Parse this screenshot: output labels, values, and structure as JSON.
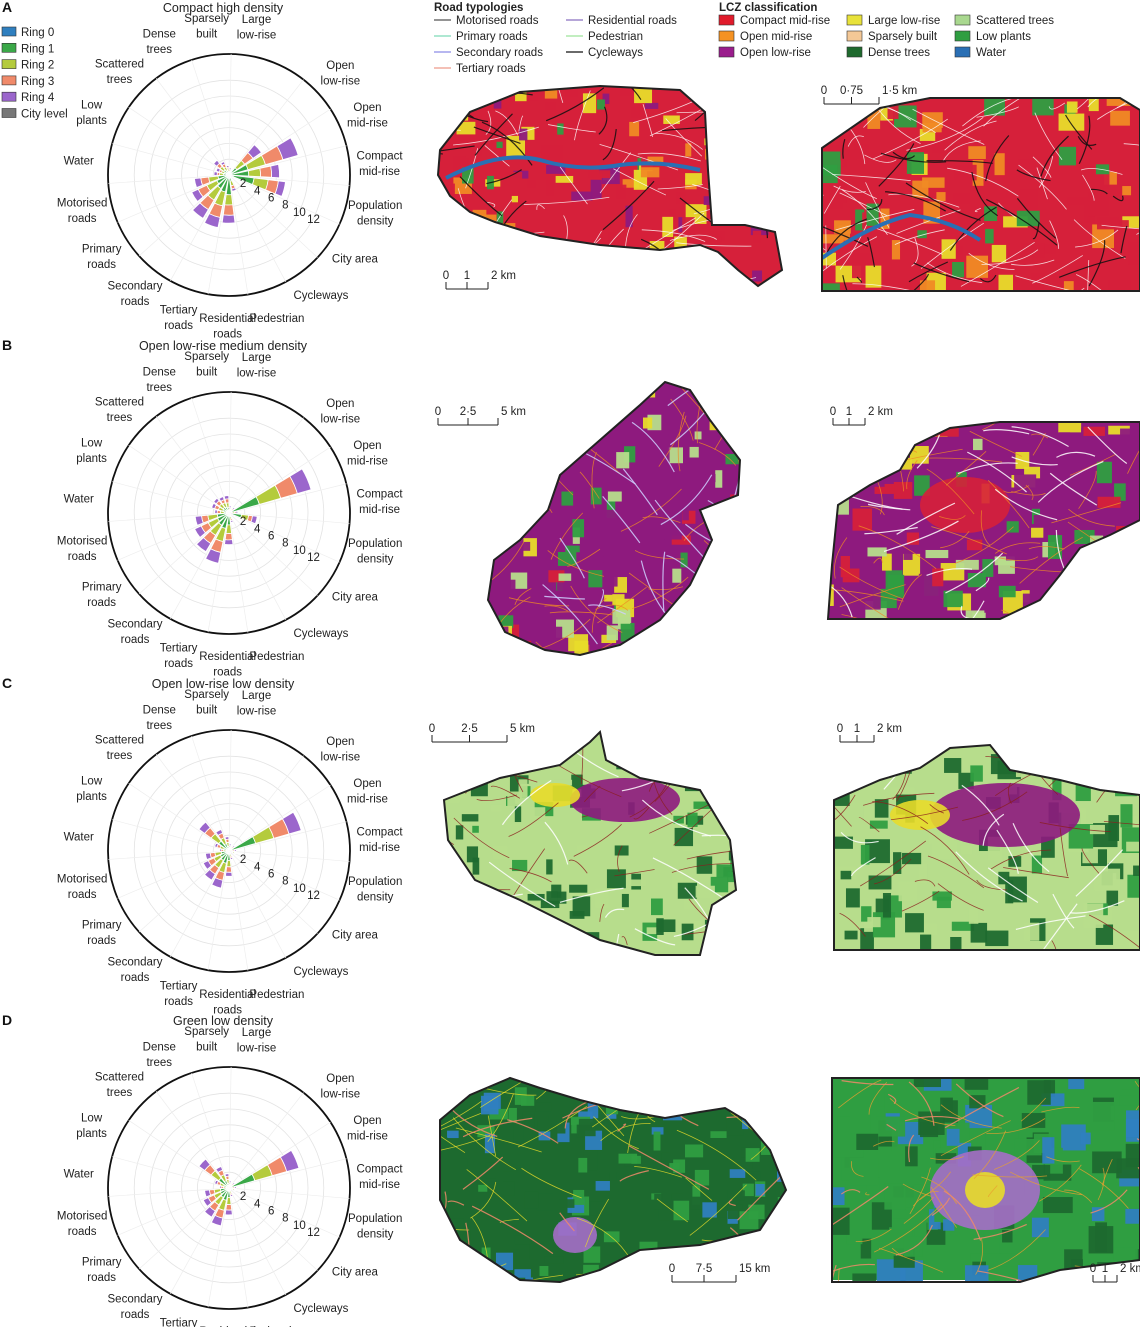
{
  "labels": {
    "ticks": [
      "2",
      "4",
      "6",
      "8",
      "10",
      "12"
    ],
    "variables": [
      [
        "Open",
        "low-rise"
      ],
      [
        "Open",
        "mid-rise"
      ],
      [
        "Compact",
        "mid-rise"
      ],
      [
        "Population",
        "density"
      ],
      [
        "City area"
      ],
      [
        "Cycleways"
      ],
      [
        "Pedestrian"
      ],
      [
        "Residential",
        "roads"
      ],
      [
        "Tertiary",
        "roads"
      ],
      [
        "Secondary",
        "roads"
      ],
      [
        "Primary",
        "roads"
      ],
      [
        "Motorised",
        "roads"
      ],
      [
        "Water"
      ],
      [
        "Low",
        "plants"
      ],
      [
        "Scattered",
        "trees"
      ],
      [
        "Dense",
        "trees"
      ],
      [
        "Sparsely",
        "built"
      ],
      [
        "Large",
        "low-rise"
      ]
    ]
  },
  "legends": {
    "rings": {
      "items": [
        {
          "label": "Ring 0",
          "color": "#2f7fbf"
        },
        {
          "label": "Ring 1",
          "color": "#3aa848"
        },
        {
          "label": "Ring 2",
          "color": "#b4cb3c"
        },
        {
          "label": "Ring 3",
          "color": "#f08a6a"
        },
        {
          "label": "Ring 4",
          "color": "#9b66cc"
        },
        {
          "label": "City level",
          "color": "#777777"
        }
      ]
    },
    "roads": {
      "title": "Road typologies",
      "items": [
        {
          "label": "Motorised roads",
          "color": "#555555"
        },
        {
          "label": "Primary roads",
          "color": "#7ed9b8"
        },
        {
          "label": "Secondary roads",
          "color": "#8c8ce6"
        },
        {
          "label": "Tertiary roads",
          "color": "#ee9a8a"
        },
        {
          "label": "Residential roads",
          "color": "#8a70c0"
        },
        {
          "label": "Pedestrian",
          "color": "#9ee39a"
        },
        {
          "label": "Cycleways",
          "color": "#111111"
        }
      ]
    },
    "lcz": {
      "title": "LCZ classification",
      "items": [
        {
          "label": "Compact mid-rise",
          "color": "#e01b2b"
        },
        {
          "label": "Open mid-rise",
          "color": "#f59222"
        },
        {
          "label": "Open low-rise",
          "color": "#9a1d8c"
        },
        {
          "label": "Large low-rise",
          "color": "#e8e23a"
        },
        {
          "label": "Sparsely built",
          "color": "#f4c896"
        },
        {
          "label": "Dense trees",
          "color": "#1f6a2e"
        },
        {
          "label": "Scattered trees",
          "color": "#a9d88f"
        },
        {
          "label": "Low plants",
          "color": "#2f9e41"
        },
        {
          "label": "Water",
          "color": "#2a6fb4"
        }
      ]
    }
  },
  "colors": {
    "compact_mid": "#d6203a",
    "open_mid": "#f08a24",
    "open_low": "#8e1a7e",
    "large_low": "#e8dc2a",
    "scattered": "#b7dd8c",
    "dense": "#1d6a2f",
    "low_plants": "#2f9e41",
    "water": "#2a6fb4",
    "road_light": "#ffffff"
  },
  "chart_data": [
    {
      "panel": "A",
      "type": "radial-stacked-bar",
      "title": "Compact high density",
      "ring_names": [
        "Ring 0",
        "Ring 1",
        "Ring 2",
        "Ring 3",
        "Ring 4"
      ],
      "variables": [
        "Open low-rise",
        "Open mid-rise",
        "Compact mid-rise",
        "Population density",
        "City area",
        "Cycleways",
        "Pedestrian",
        "Residential roads",
        "Tertiary roads",
        "Secondary roads",
        "Primary roads",
        "Motorised roads",
        "Water",
        "Low plants",
        "Scattered trees",
        "Dense trees",
        "Sparsely built",
        "Large low-rise"
      ],
      "values": [
        [
          0,
          1.2,
          1.2,
          1.3,
          1.3
        ],
        [
          0,
          2.5,
          2.3,
          2.3,
          2.0
        ],
        [
          0,
          2.5,
          1.5,
          1.4,
          1.0
        ],
        [
          0,
          3.2,
          1.8,
          1.3,
          0.9
        ],
        [
          0,
          0.3,
          0.1,
          0,
          0
        ],
        [
          0,
          0.3,
          0.2,
          0,
          0
        ],
        [
          0,
          0.8,
          0.6,
          0.4,
          0.3
        ],
        [
          0,
          2.5,
          1.3,
          1.3,
          1.0
        ],
        [
          0,
          2.2,
          1.8,
          1.5,
          1.3
        ],
        [
          0,
          2.0,
          1.7,
          1.4,
          1.3
        ],
        [
          0,
          1.7,
          1.4,
          1.2,
          0.9
        ],
        [
          0,
          1.4,
          1.2,
          1.0,
          0.8
        ],
        [
          0,
          0.7,
          0.5,
          0.3,
          0.4
        ],
        [
          0,
          0.6,
          0.4,
          0.3,
          0.4
        ],
        [
          0,
          0.8,
          0.6,
          0.5,
          0.5
        ],
        [
          0,
          0.6,
          0.5,
          0.4,
          0.3
        ],
        [
          0,
          0.5,
          0.3,
          0.2,
          0.2
        ],
        [
          0,
          0.3,
          0.2,
          0.2,
          0.2
        ]
      ],
      "city_level": [
        0.2,
        0.4,
        0.4,
        0.6,
        0.4,
        0.1,
        0.2,
        0.4,
        0.4,
        0.3,
        0.3,
        0.3,
        0.2,
        0.2,
        0.2,
        0.2,
        0.1,
        0.1
      ],
      "rlim": [
        0,
        12
      ],
      "scale_bars": [
        {
          "labels": [
            "0",
            "1",
            "2 km"
          ]
        },
        {
          "labels": [
            "0",
            "0·75",
            "1·5 km"
          ]
        }
      ]
    },
    {
      "panel": "B",
      "type": "radial-stacked-bar",
      "title": "Open low-rise medium density",
      "ring_names": [
        "Ring 0",
        "Ring 1",
        "Ring 2",
        "Ring 3",
        "Ring 4"
      ],
      "variables": [
        "Open low-rise",
        "Open mid-rise",
        "Compact mid-rise",
        "Population density",
        "City area",
        "Cycleways",
        "Pedestrian",
        "Residential roads",
        "Tertiary roads",
        "Secondary roads",
        "Primary roads",
        "Motorised roads",
        "Water",
        "Low plants",
        "Scattered trees",
        "Dense trees",
        "Sparsely built",
        "Large low-rise"
      ],
      "values": [
        [
          0,
          0.3,
          0.2,
          0.2,
          0.2
        ],
        [
          0,
          4.0,
          2.8,
          2.2,
          1.8
        ],
        [
          0,
          0.4,
          0.3,
          0.2,
          0.2
        ],
        [
          0,
          1.6,
          0.9,
          0.5,
          0.6
        ],
        [
          0,
          0.2,
          0,
          0,
          0
        ],
        [
          0,
          0.3,
          0.2,
          0,
          0
        ],
        [
          0,
          0.5,
          0.3,
          0.2,
          0.2
        ],
        [
          0,
          1.5,
          1.1,
          0.8,
          0.6
        ],
        [
          0,
          2.0,
          1.7,
          1.4,
          1.4
        ],
        [
          0,
          1.8,
          1.5,
          1.2,
          1.2
        ],
        [
          0,
          1.6,
          1.3,
          1.0,
          0.9
        ],
        [
          0,
          1.5,
          1.2,
          0.8,
          0.8
        ],
        [
          0,
          0.6,
          0.5,
          0.4,
          0.3
        ],
        [
          0,
          0.8,
          0.6,
          0.5,
          0.4
        ],
        [
          0,
          0.9,
          0.6,
          0.5,
          0.4
        ],
        [
          0,
          0.8,
          0.6,
          0.4,
          0.4
        ],
        [
          0,
          0.7,
          0.6,
          0.5,
          0.4
        ],
        [
          0,
          0.3,
          0.2,
          0.2,
          0.2
        ]
      ],
      "city_level": [
        0.1,
        0.2,
        0.2,
        0.5,
        0.3,
        0.1,
        0.1,
        0.3,
        0.3,
        0.3,
        0.3,
        0.2,
        0.1,
        0.2,
        0.2,
        0.2,
        0.2,
        0.1
      ],
      "rlim": [
        0,
        12
      ],
      "scale_bars": [
        {
          "labels": [
            "0",
            "2·5",
            "5 km"
          ]
        },
        {
          "labels": [
            "0",
            "1",
            "2 km"
          ]
        }
      ]
    },
    {
      "panel": "C",
      "type": "radial-stacked-bar",
      "title": "Open low-rise low density",
      "ring_names": [
        "Ring 0",
        "Ring 1",
        "Ring 2",
        "Ring 3",
        "Ring 4"
      ],
      "variables": [
        "Open low-rise",
        "Open mid-rise",
        "Compact mid-rise",
        "Population density",
        "City area",
        "Cycleways",
        "Pedestrian",
        "Residential roads",
        "Tertiary roads",
        "Secondary roads",
        "Primary roads",
        "Motorised roads",
        "Water",
        "Low plants",
        "Scattered trees",
        "Dense trees",
        "Sparsely built",
        "Large low-rise"
      ],
      "values": [
        [
          0,
          0.3,
          0.2,
          0.2,
          0.2
        ],
        [
          0,
          3.5,
          2.4,
          2.0,
          1.6
        ],
        [
          0,
          0.3,
          0.2,
          0.2,
          0.2
        ],
        [
          0,
          0.5,
          0.2,
          0.1,
          0.1
        ],
        [
          0,
          0.1,
          0,
          0,
          0
        ],
        [
          0,
          0.2,
          0.1,
          0,
          0
        ],
        [
          0,
          0.4,
          0.3,
          0.2,
          0.2
        ],
        [
          0,
          1.2,
          0.8,
          0.7,
          0.5
        ],
        [
          0,
          1.6,
          1.2,
          1.0,
          1.0
        ],
        [
          0,
          1.4,
          1.1,
          0.9,
          0.9
        ],
        [
          0,
          1.2,
          0.9,
          0.8,
          0.7
        ],
        [
          0,
          1.0,
          0.8,
          0.6,
          0.6
        ],
        [
          0,
          0.4,
          0.3,
          0.3,
          0.2
        ],
        [
          0,
          0.7,
          0.5,
          0.4,
          0.3
        ],
        [
          0,
          1.6,
          1.2,
          1.0,
          0.9
        ],
        [
          0,
          1.0,
          0.8,
          0.6,
          0.5
        ],
        [
          0,
          0.6,
          0.5,
          0.4,
          0.3
        ],
        [
          0,
          0.3,
          0.2,
          0.2,
          0.2
        ]
      ],
      "city_level": [
        0.1,
        0.2,
        0.2,
        0.3,
        0.2,
        0.1,
        0.1,
        0.2,
        0.2,
        0.2,
        0.2,
        0.2,
        0.1,
        0.2,
        0.3,
        0.2,
        0.1,
        0.1
      ],
      "rlim": [
        0,
        12
      ],
      "scale_bars": [
        {
          "labels": [
            "0",
            "2·5",
            "5 km"
          ]
        },
        {
          "labels": [
            "0",
            "1",
            "2 km"
          ]
        }
      ]
    },
    {
      "panel": "D",
      "type": "radial-stacked-bar",
      "title": "Green low density",
      "ring_names": [
        "Ring 0",
        "Ring 1",
        "Ring 2",
        "Ring 3",
        "Ring 4"
      ],
      "variables": [
        "Open low-rise",
        "Open mid-rise",
        "Compact mid-rise",
        "Population density",
        "City area",
        "Cycleways",
        "Pedestrian",
        "Residential roads",
        "Tertiary roads",
        "Secondary roads",
        "Primary roads",
        "Motorised roads",
        "Water",
        "Low plants",
        "Scattered trees",
        "Dense trees",
        "Sparsely built",
        "Large low-rise"
      ],
      "values": [
        [
          0,
          0.3,
          0.2,
          0.2,
          0.2
        ],
        [
          0,
          3.4,
          2.3,
          1.9,
          1.6
        ],
        [
          0,
          0.3,
          0.2,
          0.2,
          0.2
        ],
        [
          0,
          0.5,
          0.2,
          0.1,
          0.1
        ],
        [
          0,
          0.2,
          0.1,
          0,
          0
        ],
        [
          0,
          0.2,
          0.1,
          0,
          0
        ],
        [
          0,
          0.4,
          0.3,
          0.2,
          0.2
        ],
        [
          0,
          1.2,
          0.9,
          0.7,
          0.6
        ],
        [
          0,
          1.6,
          1.3,
          1.0,
          1.0
        ],
        [
          0,
          1.4,
          1.1,
          0.9,
          0.9
        ],
        [
          0,
          1.2,
          0.9,
          0.8,
          0.7
        ],
        [
          0,
          1.1,
          0.8,
          0.6,
          0.6
        ],
        [
          0,
          0.4,
          0.3,
          0.3,
          0.2
        ],
        [
          0,
          0.7,
          0.5,
          0.4,
          0.3
        ],
        [
          0,
          1.6,
          1.2,
          1.0,
          0.9
        ],
        [
          0,
          1.0,
          0.8,
          0.6,
          0.5
        ],
        [
          0,
          0.6,
          0.5,
          0.4,
          0.3
        ],
        [
          0,
          0.3,
          0.2,
          0.2,
          0.2
        ]
      ],
      "city_level": [
        0.1,
        0.2,
        0.2,
        0.3,
        0.2,
        0.1,
        0.1,
        0.2,
        0.2,
        0.2,
        0.2,
        0.2,
        0.1,
        0.2,
        0.3,
        0.2,
        0.1,
        0.1
      ],
      "rlim": [
        0,
        12
      ],
      "scale_bars": [
        {
          "labels": [
            "0",
            "7·5",
            "15 km"
          ]
        },
        {
          "labels": [
            "0",
            "1",
            "2 km"
          ]
        }
      ]
    }
  ]
}
